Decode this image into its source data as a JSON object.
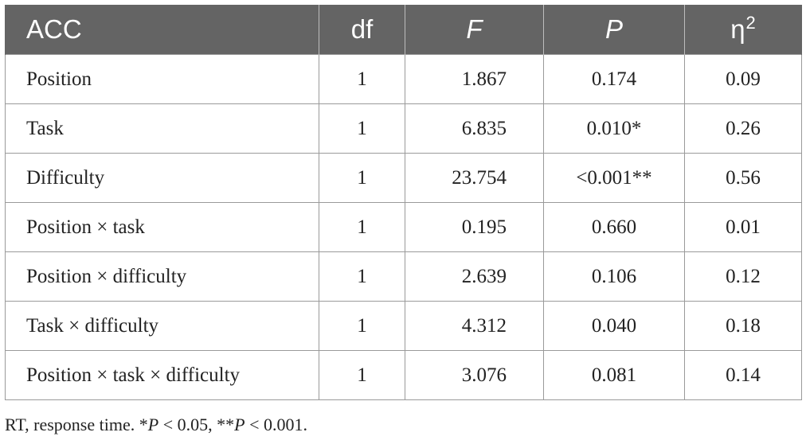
{
  "table": {
    "headers": {
      "effect": "ACC",
      "df": "df",
      "f": "F",
      "p": "P",
      "eta": "η",
      "eta_sup": "2"
    },
    "rows": [
      {
        "effect": "Position",
        "df": "1",
        "f": "1.867",
        "p": "0.174",
        "eta": "0.09"
      },
      {
        "effect": "Task",
        "df": "1",
        "f": "6.835",
        "p": "0.010*",
        "eta": "0.26"
      },
      {
        "effect": "Difficulty",
        "df": "1",
        "f": "23.754",
        "p": "<0.001**",
        "eta": "0.56"
      },
      {
        "effect": "Position × task",
        "df": "1",
        "f": "0.195",
        "p": "0.660",
        "eta": "0.01"
      },
      {
        "effect": "Position × difficulty",
        "df": "1",
        "f": "2.639",
        "p": "0.106",
        "eta": "0.12"
      },
      {
        "effect": "Task × difficulty",
        "df": "1",
        "f": "4.312",
        "p": "0.040",
        "eta": "0.18"
      },
      {
        "effect": "Position × task × difficulty",
        "df": "1",
        "f": "3.076",
        "p": "0.081",
        "eta": "0.14"
      }
    ]
  },
  "footnote": {
    "prefix": "RT, response time. *",
    "p1": "P",
    "mid": " < 0.05, **",
    "p2": "P",
    "suffix": " < 0.001."
  },
  "colors": {
    "header_bg": "#646464",
    "header_text": "#ffffff",
    "border": "#9a9a9a"
  }
}
